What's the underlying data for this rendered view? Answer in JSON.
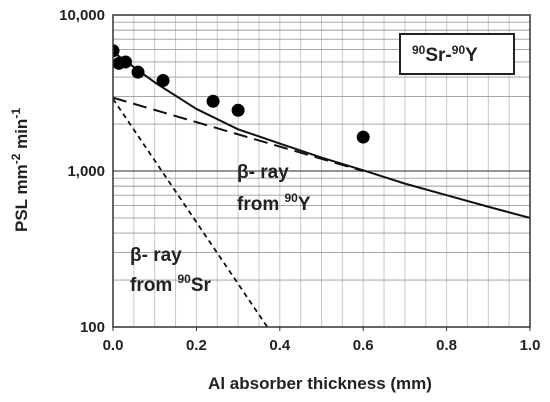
{
  "chart_data": {
    "type": "scatter",
    "title": "",
    "legend": {
      "iso_a_mass": "90",
      "iso_a_sym": "Sr-",
      "iso_b_mass": "90",
      "iso_b_sym": "Y",
      "placement": "top-right"
    },
    "xlabel": "Al absorber thickness (mm)",
    "ylabel": {
      "base": "PSL mm",
      "exp1": "-2",
      "mid": " min",
      "exp2": "-1"
    },
    "xlim": [
      0,
      1.0
    ],
    "ylim": [
      100,
      10000
    ],
    "y_scale": "log",
    "grid": true,
    "x_ticks": [
      {
        "value": 0.0,
        "label": "0.0"
      },
      {
        "value": 0.2,
        "label": "0.2"
      },
      {
        "value": 0.4,
        "label": "0.4"
      },
      {
        "value": 0.6,
        "label": "0.6"
      },
      {
        "value": 0.8,
        "label": "0.8"
      },
      {
        "value": 1.0,
        "label": "1.0"
      }
    ],
    "y_ticks": [
      {
        "value": 100,
        "label": "100"
      },
      {
        "value": 1000,
        "label": "1,000"
      },
      {
        "value": 10000,
        "label": "10,000"
      }
    ],
    "series": [
      {
        "kind": "points",
        "points": [
          {
            "x": 0.0,
            "y": 5900
          },
          {
            "x": 0.014,
            "y": 4900
          },
          {
            "x": 0.03,
            "y": 5000
          },
          {
            "x": 0.06,
            "y": 4300
          },
          {
            "x": 0.12,
            "y": 3800
          },
          {
            "x": 0.24,
            "y": 2800
          },
          {
            "x": 0.3,
            "y": 2450
          },
          {
            "x": 0.6,
            "y": 1650
          }
        ]
      },
      {
        "kind": "solid-line",
        "points": [
          {
            "x": 0.0,
            "y": 5800
          },
          {
            "x": 0.1,
            "y": 3700
          },
          {
            "x": 0.2,
            "y": 2500
          },
          {
            "x": 0.3,
            "y": 1850
          },
          {
            "x": 0.4,
            "y": 1500
          },
          {
            "x": 0.5,
            "y": 1220
          },
          {
            "x": 0.6,
            "y": 1010
          },
          {
            "x": 0.7,
            "y": 830
          },
          {
            "x": 0.8,
            "y": 700
          },
          {
            "x": 0.9,
            "y": 590
          },
          {
            "x": 1.0,
            "y": 500
          }
        ]
      },
      {
        "kind": "long-dash-line",
        "points": [
          {
            "x": 0.0,
            "y": 2950
          },
          {
            "x": 0.6,
            "y": 1000
          }
        ]
      },
      {
        "kind": "short-dash-line",
        "points": [
          {
            "x": 0.0,
            "y": 2900
          },
          {
            "x": 0.37,
            "y": 100
          }
        ]
      }
    ],
    "annotations": [
      {
        "line1": "β- ray",
        "line2_prefix": "from ",
        "line2_mass": "90",
        "line2_sym": "Y"
      },
      {
        "line1": "β- ray",
        "line2_prefix": "from ",
        "line2_mass": "90",
        "line2_sym": "Sr"
      }
    ]
  }
}
